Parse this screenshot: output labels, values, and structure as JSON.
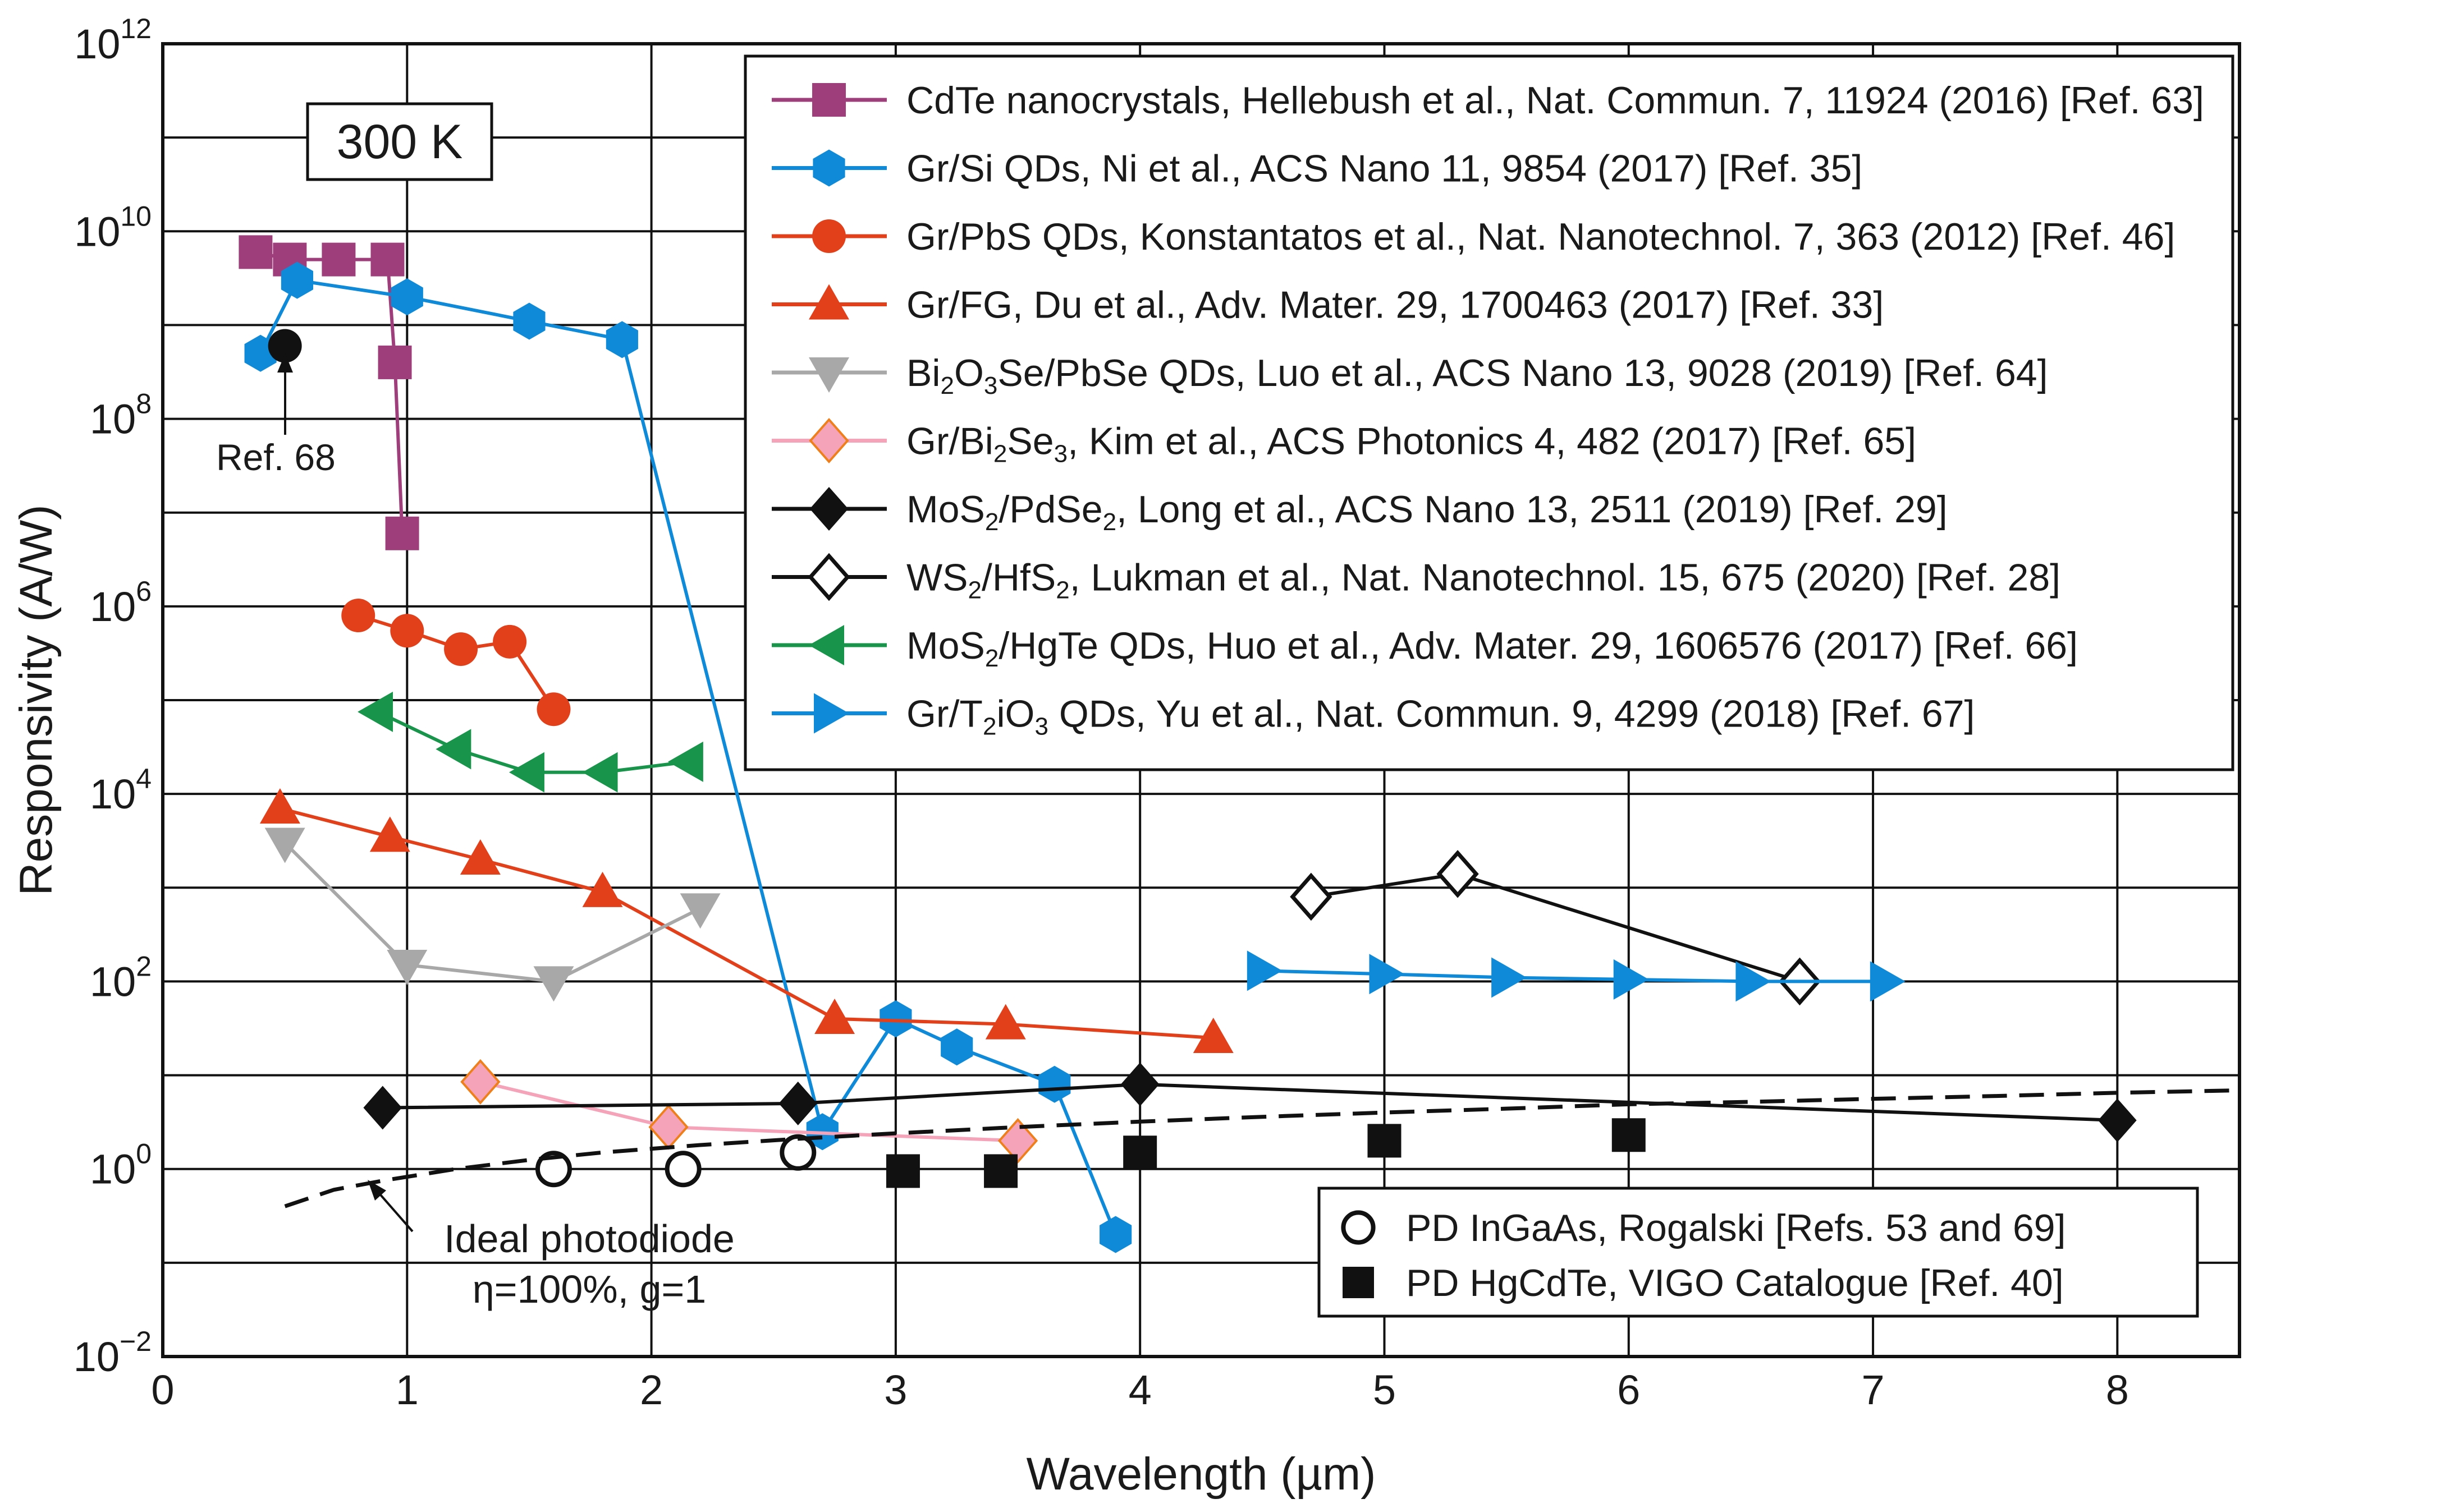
{
  "chart_data": {
    "type": "line",
    "title": "",
    "annotation_box": "300 K",
    "xlabel": "Wavelength (µm)",
    "ylabel": "Responsivity (A/W)",
    "xlim": [
      0,
      8.5
    ],
    "ylim_log10": [
      -2,
      12
    ],
    "x_ticks": [
      "0",
      "1",
      "2",
      "3",
      "4",
      "5",
      "6",
      "7",
      "8"
    ],
    "y_ticks": [
      {
        "base": "10",
        "exp": "12"
      },
      {
        "base": "10",
        "exp": "10"
      },
      {
        "base": "10",
        "exp": "8"
      },
      {
        "base": "10",
        "exp": "6"
      },
      {
        "base": "10",
        "exp": "4"
      },
      {
        "base": "10",
        "exp": "2"
      },
      {
        "base": "10",
        "exp": "0"
      },
      {
        "base": "10",
        "exp": "−2"
      }
    ],
    "grid": true,
    "series": [
      {
        "name": "CdTe nanocrystals, Hellebush et al., Nat. Commun. 7, 11924 (2016) [Ref. 63]",
        "legend_segments": [
          {
            "t": "CdTe nanocrystals, Hellebush et al., Nat. Commun. 7, 11924 (2016) [Ref. 63]"
          }
        ],
        "color": "#9e3f7c",
        "marker": "square",
        "line": true,
        "x": [
          0.38,
          0.52,
          0.72,
          0.92,
          0.95,
          0.98
        ],
        "y": [
          6000000000.0,
          5000000000.0,
          5000000000.0,
          5000000000.0,
          400000000.0,
          6000000.0
        ]
      },
      {
        "name": "Gr/Si QDs, Ni et al., ACS Nano 11, 9854 (2017) [Ref. 35]",
        "legend_segments": [
          {
            "t": "Gr/Si QDs, Ni et al., ACS Nano 11, 9854 (2017) [Ref. 35]"
          }
        ],
        "color": "#0f8ad8",
        "marker": "hexagon",
        "line": true,
        "x": [
          0.4,
          0.55,
          1.0,
          1.5,
          1.88,
          2.7,
          3.0,
          3.25,
          3.65,
          3.9
        ],
        "y": [
          500000000.0,
          3000000000.0,
          2000000000.0,
          1100000000.0,
          700000000.0,
          2.5,
          40,
          20,
          8,
          0.2
        ]
      },
      {
        "name": "Gr/PbS QDs, Konstantatos et al., Nat. Nanotechnol. 7, 363 (2012) [Ref. 46]",
        "legend_segments": [
          {
            "t": "Gr/PbS QDs, Konstantatos et al., Nat. Nanotechnol. 7, 363 (2012) [Ref. 46]"
          }
        ],
        "color": "#e2401b",
        "marker": "circle",
        "line": true,
        "x": [
          0.8,
          1.0,
          1.22,
          1.42,
          1.6
        ],
        "y": [
          800000.0,
          550000.0,
          350000.0,
          420000.0,
          80000.0
        ]
      },
      {
        "name": "Gr/FG, Du et al., Adv. Mater. 29, 1700463 (2017) [Ref. 33]",
        "legend_segments": [
          {
            "t": "Gr/FG, Du et al., Adv. Mater. 29, 1700463 (2017) [Ref. 33]"
          }
        ],
        "color": "#e2401b",
        "marker": "triangle-up",
        "line": true,
        "x": [
          0.48,
          0.93,
          1.3,
          1.8,
          2.75,
          3.45,
          4.3
        ],
        "y": [
          7000,
          3500,
          2000,
          900,
          40,
          35,
          25
        ]
      },
      {
        "name": "Bi2O3Se/PbSe QDs, Luo et al., ACS Nano 13, 9028 (2019) [Ref. 64]",
        "legend_segments": [
          {
            "t": "Bi"
          },
          {
            "t": "2",
            "sub": true
          },
          {
            "t": "O"
          },
          {
            "t": "3",
            "sub": true
          },
          {
            "t": "Se/PbSe QDs, Luo et al., ACS Nano 13, 9028 (2019) [Ref. 64]"
          }
        ],
        "color": "#a8a8a8",
        "marker": "triangle-down",
        "line": true,
        "x": [
          0.5,
          1.0,
          1.6,
          2.2
        ],
        "y": [
          3000,
          150,
          100,
          600
        ]
      },
      {
        "name": "Gr/Bi2Se3, Kim et al., ACS Photonics 4, 482 (2017) [Ref. 65]",
        "legend_segments": [
          {
            "t": "Gr/Bi"
          },
          {
            "t": "2",
            "sub": true
          },
          {
            "t": "Se"
          },
          {
            "t": "3",
            "sub": true
          },
          {
            "t": ", Kim et al., ACS Photonics 4, 482 (2017) [Ref. 65]"
          }
        ],
        "color": "#f5a3b8",
        "marker_color": "#ee7f1a",
        "marker": "diamond",
        "line": true,
        "x": [
          1.3,
          2.07,
          3.5
        ],
        "y": [
          8.5,
          2.8,
          2.0
        ]
      },
      {
        "name": "MoS2/PdSe2, Long et al., ACS Nano 13, 2511 (2019) [Ref. 29]",
        "legend_segments": [
          {
            "t": "MoS"
          },
          {
            "t": "2",
            "sub": true
          },
          {
            "t": "/PdSe"
          },
          {
            "t": "2",
            "sub": true
          },
          {
            "t": ", Long et al., ACS Nano 13, 2511 (2019) [Ref. 29]"
          }
        ],
        "color": "#111111",
        "marker": "diamond",
        "line": true,
        "x": [
          0.9,
          2.6,
          4.0,
          8.0
        ],
        "y": [
          4.5,
          5,
          8,
          3.3
        ]
      },
      {
        "name": "WS2/HfS2, Lukman et al., Nat. Nanotechnol. 15, 675 (2020) [Ref. 28]",
        "legend_segments": [
          {
            "t": "WS"
          },
          {
            "t": "2",
            "sub": true
          },
          {
            "t": "/HfS"
          },
          {
            "t": "2",
            "sub": true
          },
          {
            "t": ", Lukman et al., Nat. Nanotechnol. 15, 675 (2020) [Ref. 28]"
          }
        ],
        "color": "#111111",
        "marker": "diamond-open",
        "line": true,
        "x": [
          4.7,
          5.3,
          6.7
        ],
        "y": [
          800,
          1400,
          100
        ]
      },
      {
        "name": "MoS2/HgTe QDs, Huo et al., Adv. Mater. 29, 1606576 (2017) [Ref. 66]",
        "legend_segments": [
          {
            "t": "MoS"
          },
          {
            "t": "2",
            "sub": true
          },
          {
            "t": "/HgTe QDs, Huo et al., Adv. Mater. 29, 1606576 (2017) [Ref. 66]"
          }
        ],
        "color": "#18954a",
        "marker": "triangle-left",
        "line": true,
        "x": [
          0.88,
          1.2,
          1.5,
          1.8,
          2.15
        ],
        "y": [
          75000,
          30000,
          17000,
          17000,
          22000
        ]
      },
      {
        "name": "Gr/T2iO3 QDs, Yu et al., Nat. Commun. 9, 4299 (2018) [Ref. 67]",
        "legend_segments": [
          {
            "t": "Gr/T"
          },
          {
            "t": "2",
            "sub": true
          },
          {
            "t": "iO"
          },
          {
            "t": "3",
            "sub": true
          },
          {
            "t": " QDs, Yu et al., Nat. Commun. 9, 4299 (2018) [Ref. 67]"
          }
        ],
        "color": "#0f8ad8",
        "marker": "triangle-right",
        "line": true,
        "x": [
          4.5,
          5.0,
          5.5,
          6.0,
          6.5,
          7.05
        ],
        "y": [
          130,
          120,
          110,
          105,
          100,
          100
        ]
      },
      {
        "name": "PD InGaAs, Rogalski [Refs. 53 and 69]",
        "color": "#111111",
        "marker": "circle-open",
        "line": false,
        "x": [
          1.6,
          2.13,
          2.6
        ],
        "y": [
          1.0,
          1.0,
          1.5
        ]
      },
      {
        "name": "PD HgCdTe, VIGO Catalogue [Ref. 40]",
        "color": "#111111",
        "marker": "square",
        "line": false,
        "x": [
          3.03,
          3.43,
          4.0,
          5.0,
          6.0
        ],
        "y": [
          0.95,
          0.95,
          1.5,
          2.0,
          2.3
        ]
      },
      {
        "name": "Ref. 68",
        "color": "#111111",
        "marker": "circle",
        "line": false,
        "x": [
          0.5
        ],
        "y": [
          600000000.0
        ]
      },
      {
        "name": "Ideal photodiode",
        "color": "#111111",
        "style": "dashed",
        "marker": "none",
        "line": true,
        "x": [
          0.5,
          0.7,
          0.9,
          1.2,
          1.5,
          1.8,
          2.2,
          2.6,
          3.0,
          3.5,
          4.0,
          4.5,
          5.0,
          5.5,
          6.0,
          6.5,
          7.0,
          7.5,
          8.0,
          8.5
        ],
        "y": [
          0.4,
          0.6,
          0.75,
          1.0,
          1.25,
          1.5,
          1.8,
          2.1,
          2.4,
          2.8,
          3.2,
          3.6,
          4.0,
          4.4,
          4.9,
          5.2,
          5.6,
          6.0,
          6.5,
          6.9
        ]
      }
    ],
    "legend_placement": "top-right",
    "inline_legend": {
      "placement": "bottom-right",
      "entries": [
        "PD InGaAs, Rogalski [Refs. 53 and 69]",
        "PD HgCdTe, VIGO Catalogue [Ref. 40]"
      ]
    },
    "annotations": {
      "ref68": "Ref. 68",
      "ideal_line1": "Ideal photodiode",
      "ideal_line2": "η=100%, g=1"
    }
  }
}
